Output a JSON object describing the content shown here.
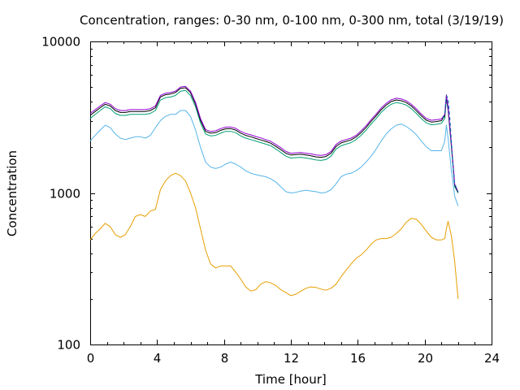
{
  "chart_data": {
    "type": "line",
    "title": "Concentration, ranges: 0-30 nm, 0-100 nm, 0-300 nm, total (3/19/19)",
    "xlabel": "Time [hour]",
    "ylabel": "Concentration",
    "xlim": [
      0,
      24
    ],
    "ylim": [
      100,
      10000
    ],
    "yscale": "log",
    "grid": false,
    "legend": "none",
    "x_ticks": [
      "0",
      "4",
      "8",
      "12",
      "16",
      "20",
      "24"
    ],
    "y_ticks": [
      "100",
      "1000",
      "10000"
    ],
    "series": [
      {
        "color": "#e69f00",
        "x": [
          0,
          0.3,
          0.6,
          0.9,
          1.2,
          1.5,
          1.8,
          2.1,
          2.4,
          2.7,
          3.0,
          3.3,
          3.6,
          3.9,
          4.2,
          4.5,
          4.8,
          5.1,
          5.4,
          5.7,
          6.0,
          6.3,
          6.6,
          6.9,
          7.2,
          7.5,
          7.8,
          8.1,
          8.4,
          8.7,
          9.0,
          9.3,
          9.6,
          9.9,
          10.2,
          10.5,
          10.8,
          11.1,
          11.4,
          11.7,
          12.0,
          12.3,
          12.6,
          12.9,
          13.2,
          13.5,
          13.8,
          14.1,
          14.4,
          14.7,
          15.0,
          15.3,
          15.6,
          15.9,
          16.2,
          16.5,
          16.8,
          17.1,
          17.4,
          17.7,
          18.0,
          18.3,
          18.6,
          18.9,
          19.2,
          19.5,
          19.8,
          20.1,
          20.4,
          20.7,
          21.0,
          21.2,
          21.3,
          21.4,
          21.6,
          21.8,
          22.0
        ],
        "values": [
          490,
          540,
          580,
          630,
          600,
          530,
          510,
          530,
          600,
          700,
          720,
          700,
          760,
          780,
          1050,
          1200,
          1300,
          1350,
          1300,
          1200,
          1000,
          800,
          580,
          420,
          340,
          320,
          330,
          330,
          330,
          300,
          270,
          240,
          225,
          230,
          250,
          260,
          255,
          245,
          230,
          220,
          210,
          215,
          225,
          235,
          240,
          238,
          232,
          228,
          235,
          250,
          280,
          310,
          340,
          370,
          390,
          420,
          460,
          490,
          500,
          500,
          510,
          540,
          580,
          640,
          680,
          670,
          620,
          560,
          510,
          490,
          490,
          500,
          580,
          650,
          520,
          350,
          200
        ]
      },
      {
        "color": "#56b4e9",
        "x": [
          0,
          0.3,
          0.6,
          0.9,
          1.2,
          1.5,
          1.8,
          2.1,
          2.4,
          2.7,
          3.0,
          3.3,
          3.6,
          3.9,
          4.2,
          4.5,
          4.8,
          5.1,
          5.4,
          5.7,
          6.0,
          6.3,
          6.6,
          6.9,
          7.2,
          7.5,
          7.8,
          8.1,
          8.4,
          8.7,
          9.0,
          9.3,
          9.6,
          9.9,
          10.2,
          10.5,
          10.8,
          11.1,
          11.4,
          11.7,
          12.0,
          12.3,
          12.6,
          12.9,
          13.2,
          13.5,
          13.8,
          14.1,
          14.4,
          14.7,
          15.0,
          15.3,
          15.6,
          15.9,
          16.2,
          16.5,
          16.8,
          17.1,
          17.4,
          17.7,
          18.0,
          18.3,
          18.6,
          18.9,
          19.2,
          19.5,
          19.8,
          20.1,
          20.4,
          20.7,
          21.0,
          21.2,
          21.3,
          21.4,
          21.6,
          21.8,
          22.0
        ],
        "values": [
          2200,
          2400,
          2600,
          2800,
          2700,
          2450,
          2300,
          2250,
          2300,
          2350,
          2350,
          2300,
          2400,
          2700,
          3000,
          3200,
          3300,
          3300,
          3500,
          3500,
          3200,
          2600,
          2000,
          1600,
          1480,
          1450,
          1480,
          1550,
          1600,
          1550,
          1480,
          1400,
          1350,
          1320,
          1300,
          1280,
          1240,
          1180,
          1100,
          1020,
          1000,
          1010,
          1030,
          1040,
          1030,
          1020,
          1000,
          1010,
          1050,
          1150,
          1280,
          1330,
          1350,
          1400,
          1480,
          1600,
          1750,
          1950,
          2200,
          2450,
          2650,
          2800,
          2850,
          2750,
          2600,
          2420,
          2200,
          2020,
          1900,
          1900,
          1900,
          2200,
          2800,
          2300,
          1400,
          950,
          820
        ]
      },
      {
        "color": "#009e73",
        "x": [
          0,
          0.3,
          0.6,
          0.9,
          1.2,
          1.5,
          1.8,
          2.1,
          2.4,
          2.7,
          3.0,
          3.3,
          3.6,
          3.9,
          4.2,
          4.5,
          4.8,
          5.1,
          5.4,
          5.7,
          6.0,
          6.3,
          6.6,
          6.9,
          7.2,
          7.5,
          7.8,
          8.1,
          8.4,
          8.7,
          9.0,
          9.3,
          9.6,
          9.9,
          10.2,
          10.5,
          10.8,
          11.1,
          11.4,
          11.7,
          12.0,
          12.3,
          12.6,
          12.9,
          13.2,
          13.5,
          13.8,
          14.1,
          14.4,
          14.7,
          15.0,
          15.3,
          15.6,
          15.9,
          16.2,
          16.5,
          16.8,
          17.1,
          17.4,
          17.7,
          18.0,
          18.3,
          18.6,
          18.9,
          19.2,
          19.5,
          19.8,
          20.1,
          20.4,
          20.7,
          21.0,
          21.2,
          21.3,
          21.4,
          21.6,
          21.8,
          22.0
        ],
        "values": [
          3100,
          3300,
          3500,
          3700,
          3600,
          3350,
          3250,
          3250,
          3300,
          3300,
          3300,
          3300,
          3350,
          3500,
          4100,
          4250,
          4300,
          4400,
          4700,
          4750,
          4400,
          3700,
          2900,
          2450,
          2380,
          2400,
          2480,
          2550,
          2550,
          2500,
          2380,
          2300,
          2250,
          2200,
          2150,
          2100,
          2050,
          1950,
          1850,
          1750,
          1700,
          1710,
          1720,
          1700,
          1680,
          1650,
          1640,
          1660,
          1750,
          1950,
          2050,
          2100,
          2150,
          2250,
          2400,
          2600,
          2850,
          3100,
          3400,
          3650,
          3850,
          3950,
          3900,
          3800,
          3600,
          3350,
          3100,
          2900,
          2820,
          2840,
          2880,
          3100,
          4200,
          3500,
          2000,
          1100,
          1000
        ]
      },
      {
        "color": "#000000",
        "x": [
          0,
          0.3,
          0.6,
          0.9,
          1.2,
          1.5,
          1.8,
          2.1,
          2.4,
          2.7,
          3.0,
          3.3,
          3.6,
          3.9,
          4.2,
          4.5,
          4.8,
          5.1,
          5.4,
          5.7,
          6.0,
          6.3,
          6.6,
          6.9,
          7.2,
          7.5,
          7.8,
          8.1,
          8.4,
          8.7,
          9.0,
          9.3,
          9.6,
          9.9,
          10.2,
          10.5,
          10.8,
          11.1,
          11.4,
          11.7,
          12.0,
          12.3,
          12.6,
          12.9,
          13.2,
          13.5,
          13.8,
          14.1,
          14.4,
          14.7,
          15.0,
          15.3,
          15.6,
          15.9,
          16.2,
          16.5,
          16.8,
          17.1,
          17.4,
          17.7,
          18.0,
          18.3,
          18.6,
          18.9,
          19.2,
          19.5,
          19.8,
          20.1,
          20.4,
          20.7,
          21.0,
          21.2,
          21.3,
          21.4,
          21.6,
          21.8,
          22.0
        ],
        "values": [
          3250,
          3450,
          3650,
          3850,
          3750,
          3500,
          3400,
          3400,
          3450,
          3450,
          3450,
          3450,
          3500,
          3650,
          4300,
          4450,
          4500,
          4600,
          4900,
          4950,
          4600,
          3850,
          3020,
          2550,
          2480,
          2500,
          2590,
          2650,
          2660,
          2600,
          2480,
          2400,
          2350,
          2290,
          2240,
          2190,
          2130,
          2030,
          1930,
          1830,
          1780,
          1790,
          1800,
          1780,
          1760,
          1730,
          1720,
          1740,
          1830,
          2030,
          2140,
          2190,
          2240,
          2340,
          2500,
          2710,
          2970,
          3230,
          3540,
          3800,
          4010,
          4110,
          4060,
          3950,
          3750,
          3490,
          3230,
          3020,
          2940,
          2960,
          3000,
          3230,
          4350,
          3600,
          2050,
          1120,
          1010
        ]
      },
      {
        "color": "#9400d3",
        "x": [
          0,
          0.3,
          0.6,
          0.9,
          1.2,
          1.5,
          1.8,
          2.1,
          2.4,
          2.7,
          3.0,
          3.3,
          3.6,
          3.9,
          4.2,
          4.5,
          4.8,
          5.1,
          5.4,
          5.7,
          6.0,
          6.3,
          6.6,
          6.9,
          7.2,
          7.5,
          7.8,
          8.1,
          8.4,
          8.7,
          9.0,
          9.3,
          9.6,
          9.9,
          10.2,
          10.5,
          10.8,
          11.1,
          11.4,
          11.7,
          12.0,
          12.3,
          12.6,
          12.9,
          13.2,
          13.5,
          13.8,
          14.1,
          14.4,
          14.7,
          15.0,
          15.3,
          15.6,
          15.9,
          16.2,
          16.5,
          16.8,
          17.1,
          17.4,
          17.7,
          18.0,
          18.3,
          18.6,
          18.9,
          19.2,
          19.5,
          19.8,
          20.1,
          20.4,
          20.7,
          21.0,
          21.2,
          21.3,
          21.4,
          21.6,
          21.8,
          22.0
        ],
        "values": [
          3350,
          3550,
          3750,
          3950,
          3850,
          3600,
          3500,
          3500,
          3550,
          3550,
          3550,
          3550,
          3600,
          3750,
          4400,
          4550,
          4600,
          4700,
          5000,
          5050,
          4700,
          3950,
          3100,
          2620,
          2550,
          2570,
          2660,
          2720,
          2730,
          2670,
          2550,
          2470,
          2420,
          2360,
          2310,
          2250,
          2190,
          2090,
          1990,
          1880,
          1830,
          1840,
          1850,
          1830,
          1810,
          1780,
          1770,
          1790,
          1880,
          2090,
          2200,
          2250,
          2300,
          2400,
          2570,
          2780,
          3050,
          3320,
          3640,
          3900,
          4120,
          4220,
          4170,
          4060,
          3850,
          3590,
          3320,
          3100,
          3020,
          3040,
          3080,
          3300,
          4450,
          3700,
          2100,
          1140,
          1020
        ]
      },
      {
        "color": "#0072b2",
        "dash": true,
        "x": [
          21.1,
          21.2,
          21.3,
          21.4,
          21.5,
          21.6,
          21.7,
          21.8,
          22.0
        ],
        "values": [
          3100,
          3400,
          4400,
          4200,
          3200,
          2200,
          1500,
          1150,
          1020
        ]
      }
    ]
  }
}
